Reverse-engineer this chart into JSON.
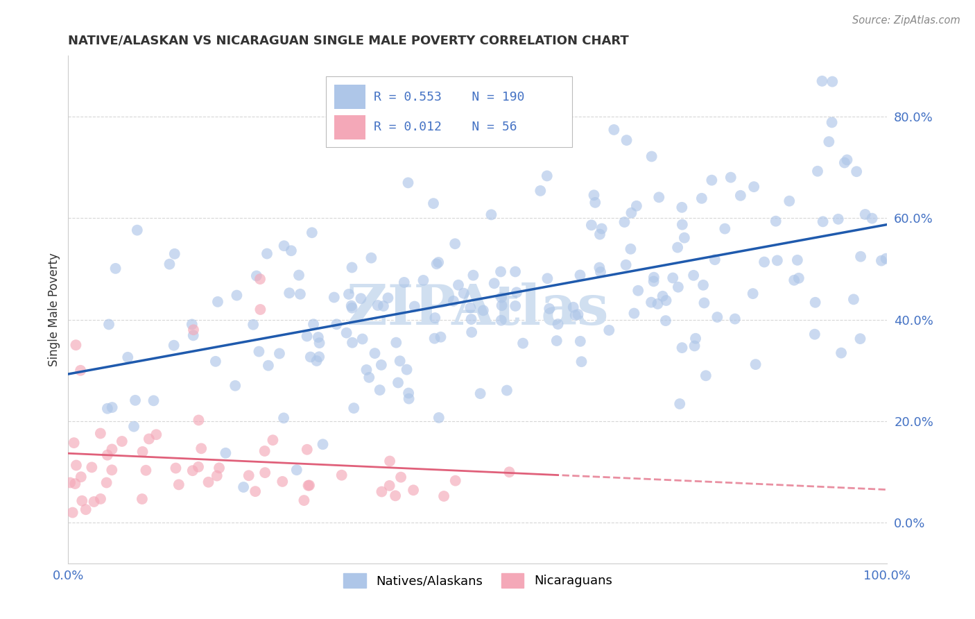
{
  "title": "NATIVE/ALASKAN VS NICARAGUAN SINGLE MALE POVERTY CORRELATION CHART",
  "source": "Source: ZipAtlas.com",
  "ylabel": "Single Male Poverty",
  "yticks": [
    0.0,
    0.2,
    0.4,
    0.6,
    0.8
  ],
  "xlim": [
    0.0,
    1.0
  ],
  "ylim": [
    -0.08,
    0.92
  ],
  "blue_R": 0.553,
  "blue_N": 190,
  "pink_R": 0.012,
  "pink_N": 56,
  "blue_color": "#aec6e8",
  "blue_line_color": "#1f5aad",
  "pink_color": "#f4a8b8",
  "pink_line_color": "#e0607a",
  "legend_label_blue": "Natives/Alaskans",
  "legend_label_pink": "Nicaraguans",
  "axis_label_color": "#4472c4",
  "background_color": "#ffffff",
  "grid_color": "#cccccc",
  "watermark_color": "#d0dff0"
}
